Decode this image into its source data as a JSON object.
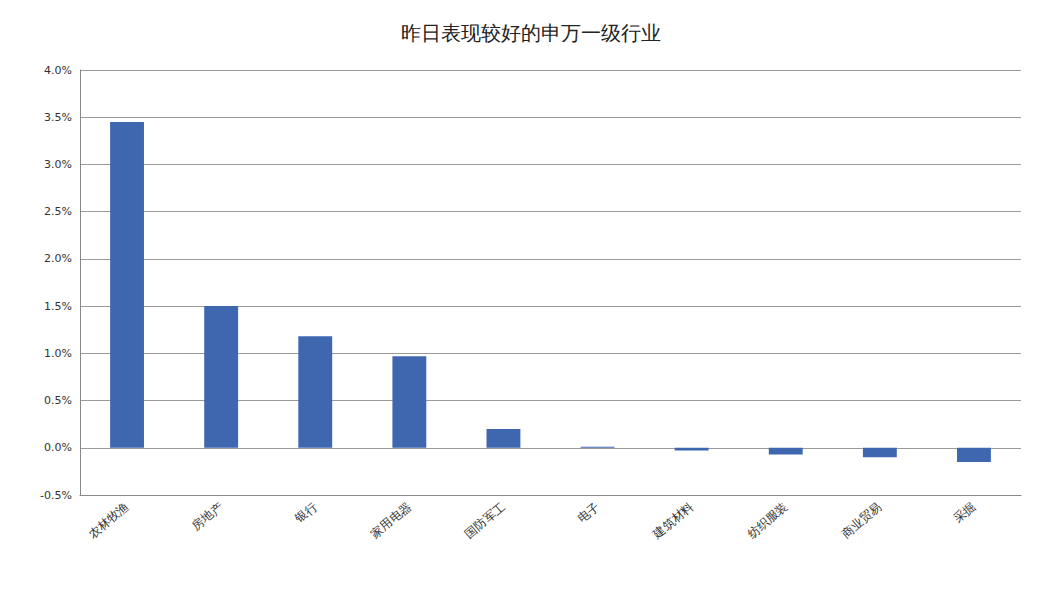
{
  "chart_data": {
    "type": "bar",
    "title": "昨日表现较好的申万一级行业",
    "categories": [
      "农林牧渔",
      "房地产",
      "银行",
      "家用电器",
      "国防军工",
      "电子",
      "建筑材料",
      "纺织服装",
      "商业贸易",
      "采掘"
    ],
    "values": [
      3.45,
      1.5,
      1.18,
      0.97,
      0.2,
      0.01,
      -0.03,
      -0.07,
      -0.1,
      -0.15
    ],
    "color": "#3f67b0",
    "ylim": [
      -0.5,
      4.0
    ],
    "yticks": [
      {
        "value": -0.5,
        "label": "-0.5%"
      },
      {
        "value": 0,
        "label": "0.0%"
      },
      {
        "value": 0.5,
        "label": "0.5%"
      },
      {
        "value": 1.0,
        "label": "1.0%"
      },
      {
        "value": 1.5,
        "label": "1.5%"
      },
      {
        "value": 2.0,
        "label": "2.0%"
      },
      {
        "value": 2.5,
        "label": "2.5%"
      },
      {
        "value": 3.0,
        "label": "3.0%"
      },
      {
        "value": 3.5,
        "label": "3.5%"
      },
      {
        "value": 4.0,
        "label": "4.0%"
      }
    ],
    "grid": true
  }
}
